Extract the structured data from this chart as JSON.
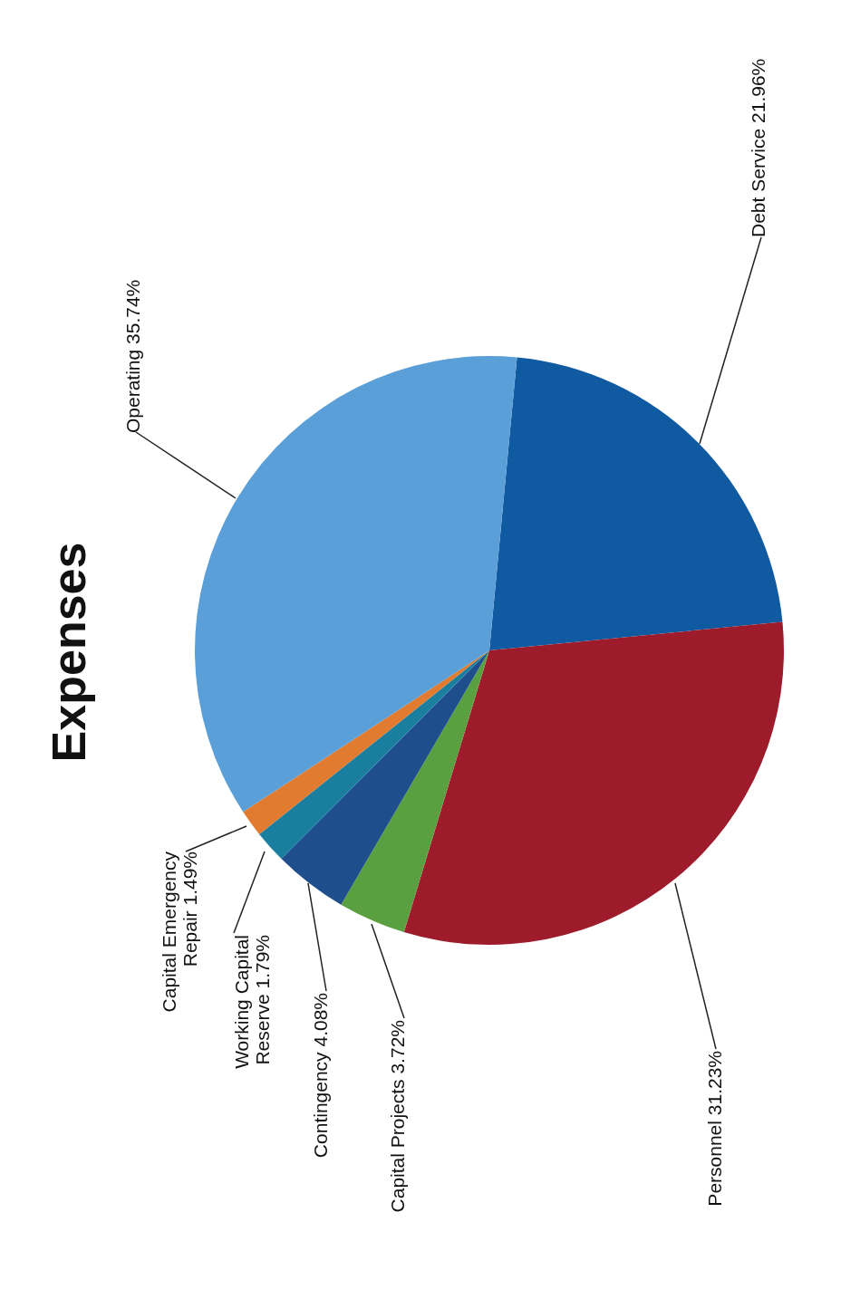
{
  "chart_data": {
    "type": "pie",
    "title": "Expenses",
    "categories": [
      "Debt Service",
      "Personnel",
      "Capital Projects",
      "Contingency",
      "Working Capital Reserve",
      "Capital Emergency Repair",
      "Operating"
    ],
    "values": [
      21.96,
      31.23,
      3.72,
      4.08,
      1.79,
      1.49,
      35.74
    ],
    "value_labels": [
      "21.96%",
      "31.23%",
      "3.72%",
      "4.08%",
      "1.79%",
      "1.49%",
      "35.74%"
    ],
    "colors": [
      "#0f5aa0",
      "#9e1b2b",
      "#5aa040",
      "#1f4e8c",
      "#1a7f9e",
      "#e07b30",
      "#5b9fd8"
    ]
  }
}
